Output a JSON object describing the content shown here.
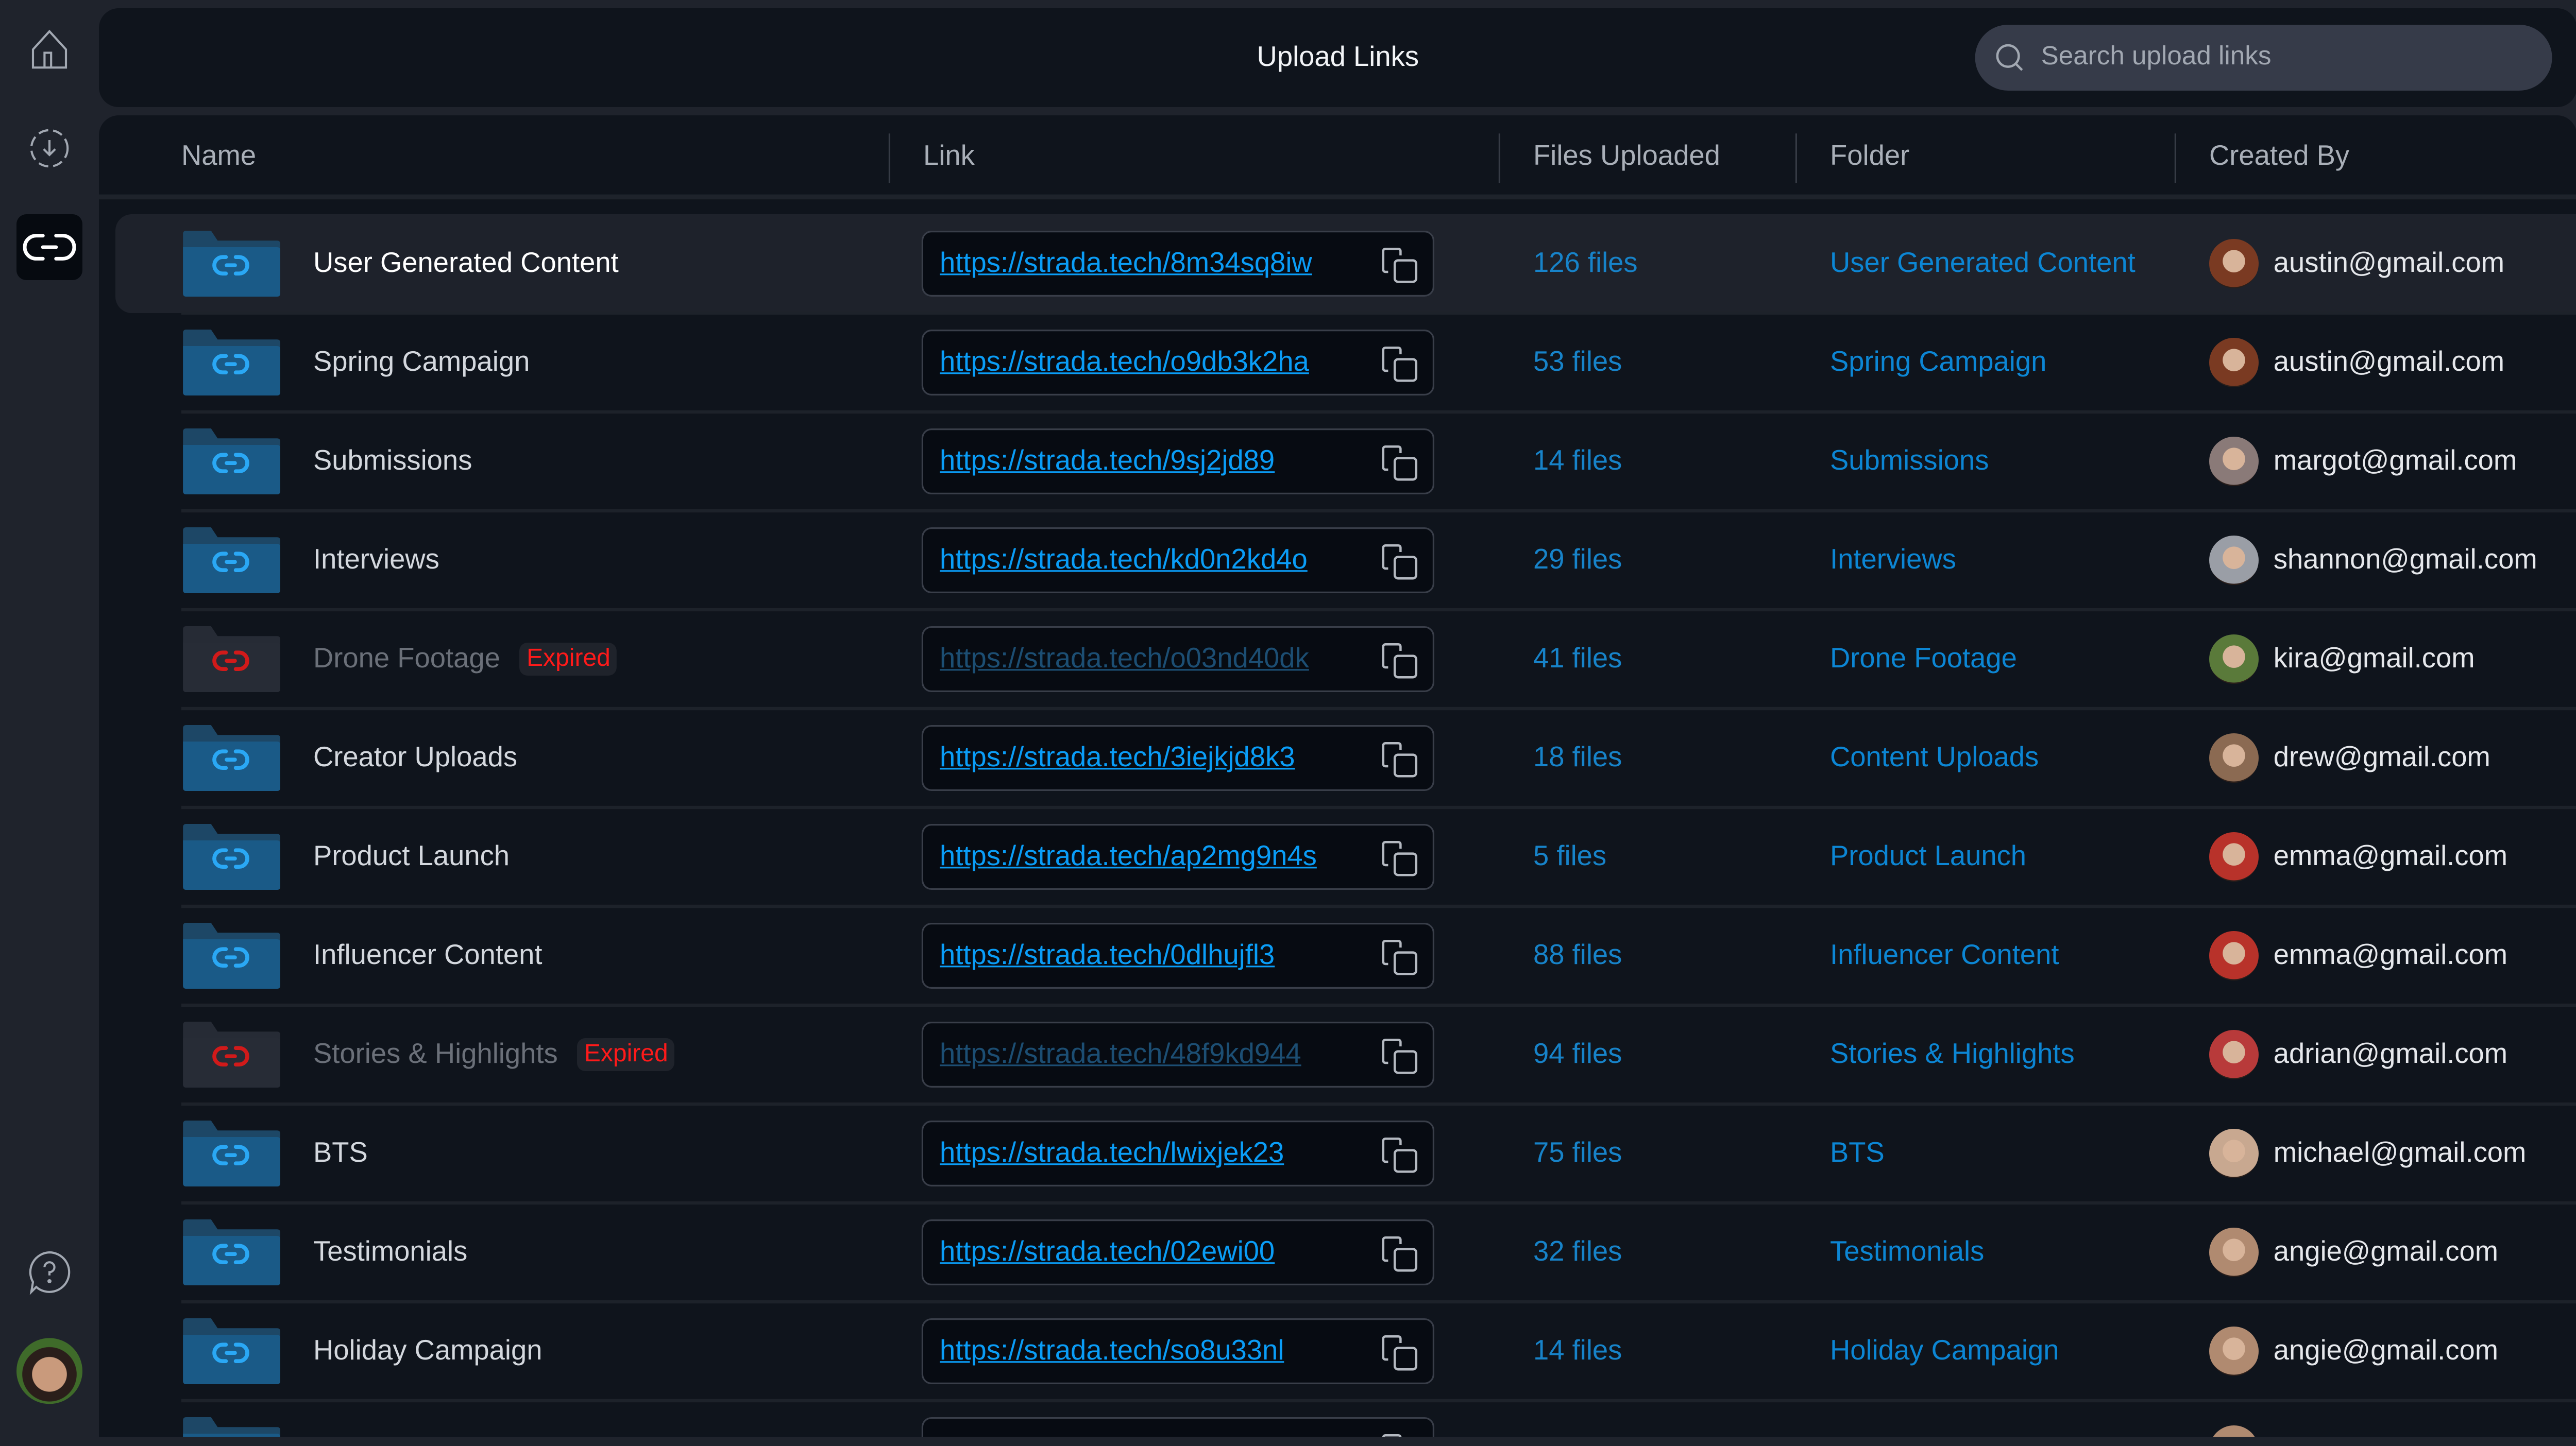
{
  "sidebar": {
    "items": [
      {
        "icon": "home-icon"
      },
      {
        "icon": "download-icon"
      },
      {
        "icon": "link-icon",
        "active": true
      }
    ],
    "help_icon": "help-chat-icon",
    "user_avatar": "user-avatar"
  },
  "header": {
    "title": "Upload Links",
    "search_placeholder": "Search upload links",
    "search_value": ""
  },
  "table": {
    "columns": [
      "Name",
      "Link",
      "Files Uploaded",
      "Folder",
      "Created By"
    ],
    "rows": [
      {
        "name": "User Generated Content",
        "link": "https://strada.tech/8m34sq8iw",
        "files": "126 files",
        "folder": "User Generated Content",
        "email": "austin@gmail.com",
        "expired": false,
        "highlighted": true,
        "avatar_color": "#7a3a22"
      },
      {
        "name": "Spring Campaign",
        "link": "https://strada.tech/o9db3k2ha",
        "files": "53 files",
        "folder": "Spring Campaign",
        "email": "austin@gmail.com",
        "expired": false,
        "avatar_color": "#7a3a22"
      },
      {
        "name": "Submissions",
        "link": "https://strada.tech/9sj2jd89",
        "files": "14 files",
        "folder": "Submissions",
        "email": "margot@gmail.com",
        "expired": false,
        "avatar_color": "#8a7a78"
      },
      {
        "name": "Interviews",
        "link": "https://strada.tech/kd0n2kd4o",
        "files": "29 files",
        "folder": "Interviews",
        "email": "shannon@gmail.com",
        "expired": false,
        "avatar_color": "#9a9ea6"
      },
      {
        "name": "Drone Footage",
        "badge": "Expired",
        "link": "https://strada.tech/o03nd40dk",
        "files": "41 files",
        "folder": "Drone Footage",
        "email": "kira@gmail.com",
        "expired": true,
        "avatar_color": "#5a7a3a"
      },
      {
        "name": "Creator Uploads",
        "link": "https://strada.tech/3iejkjd8k3",
        "files": "18 files",
        "folder": "Content Uploads",
        "email": "drew@gmail.com",
        "expired": false,
        "avatar_color": "#8b6a52"
      },
      {
        "name": "Product Launch",
        "link": "https://strada.tech/ap2mg9n4s",
        "files": "5 files",
        "folder": "Product Launch",
        "email": "emma@gmail.com",
        "expired": false,
        "avatar_color": "#b8322a"
      },
      {
        "name": "Influencer Content",
        "link": "https://strada.tech/0dlhujfl3",
        "files": "88 files",
        "folder": "Influencer Content",
        "email": "emma@gmail.com",
        "expired": false,
        "avatar_color": "#b8322a"
      },
      {
        "name": "Stories & Highlights",
        "badge": "Expired",
        "link": "https://strada.tech/48f9kd944",
        "files": "94 files",
        "folder": "Stories & Highlights",
        "email": "adrian@gmail.com",
        "expired": true,
        "avatar_color": "#b83a3a"
      },
      {
        "name": "BTS",
        "link": "https://strada.tech/lwixjek23",
        "files": "75 files",
        "folder": "BTS",
        "email": "michael@gmail.com",
        "expired": false,
        "avatar_color": "#c8a890"
      },
      {
        "name": "Testimonials",
        "link": "https://strada.tech/02ewi00",
        "files": "32 files",
        "folder": "Testimonials",
        "email": "angie@gmail.com",
        "expired": false,
        "avatar_color": "#b08a70"
      },
      {
        "name": "Holiday Campaign",
        "link": "https://strada.tech/so8u33nl",
        "files": "14 files",
        "folder": "Holiday Campaign",
        "email": "angie@gmail.com",
        "expired": false,
        "avatar_color": "#b08a70"
      }
    ]
  },
  "colors": {
    "accent": "#0a9df7",
    "expired": "#ff1a1a",
    "panel": "#0f141c",
    "background": "#1f232c"
  }
}
